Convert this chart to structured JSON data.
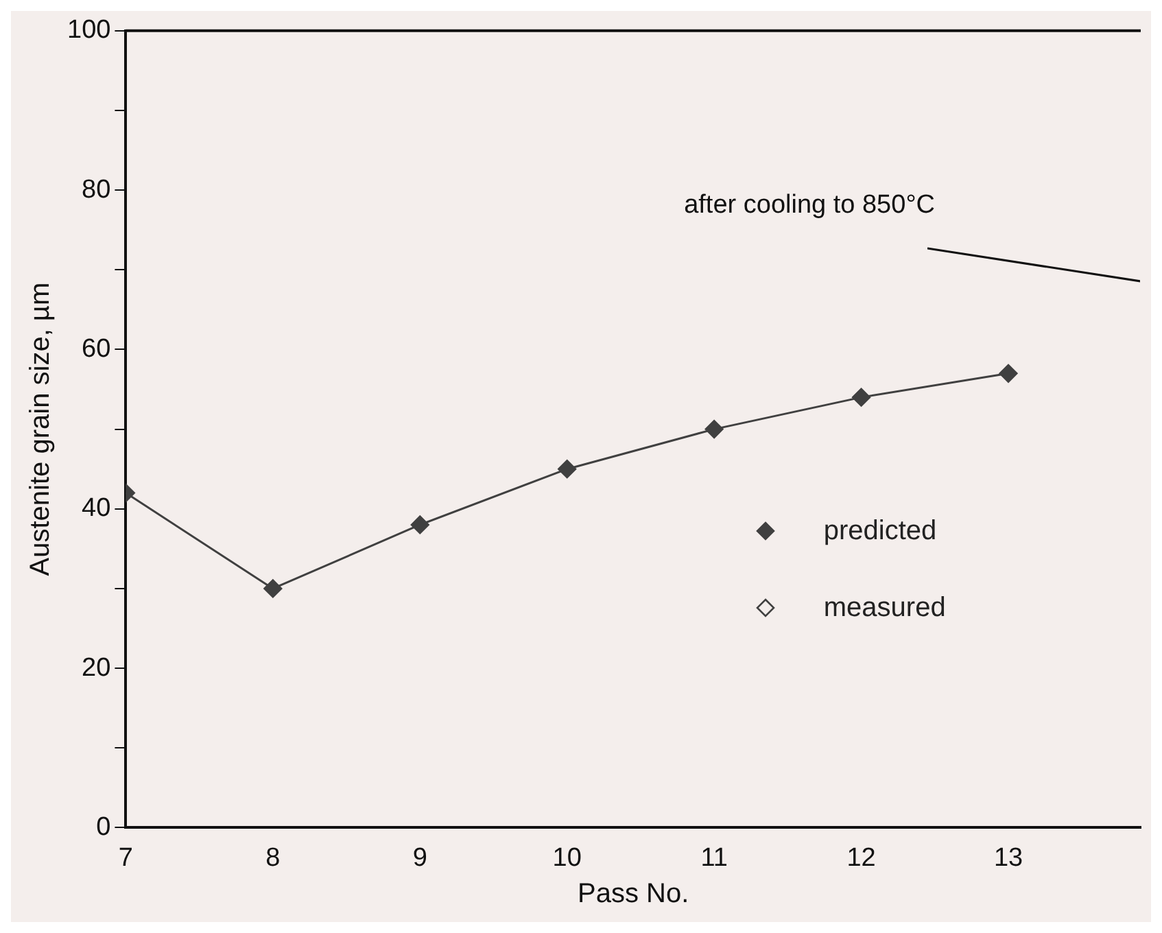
{
  "chart_data": {
    "type": "line",
    "xlabel": "Pass No.",
    "ylabel": "Austenite grain size, µm",
    "x": [
      7,
      8,
      9,
      10,
      11,
      12,
      13
    ],
    "series": [
      {
        "name": "predicted",
        "color": "#404040",
        "marker": "diamond",
        "values": [
          42,
          30,
          38,
          45,
          50,
          54,
          57
        ]
      },
      {
        "name": "measured",
        "color": "#404040",
        "marker": "diamond",
        "values": [
          null,
          null,
          null,
          null,
          null,
          null,
          null
        ]
      }
    ],
    "xlim": [
      7,
      13.9
    ],
    "xticks": [
      7,
      8,
      9,
      10,
      11,
      12,
      13
    ],
    "ylim": [
      0,
      100
    ],
    "yticks": [
      0,
      {
        "value": 10,
        "label": null
      },
      20,
      {
        "value": 30,
        "label": null
      },
      40,
      {
        "value": 50,
        "label": null
      },
      60,
      {
        "value": 70,
        "label": null
      },
      80,
      {
        "value": 90,
        "label": null
      },
      100
    ],
    "annotations": [
      "after cooling to 850°C"
    ],
    "legend": "right",
    "grid": false,
    "line_style": "solid"
  }
}
